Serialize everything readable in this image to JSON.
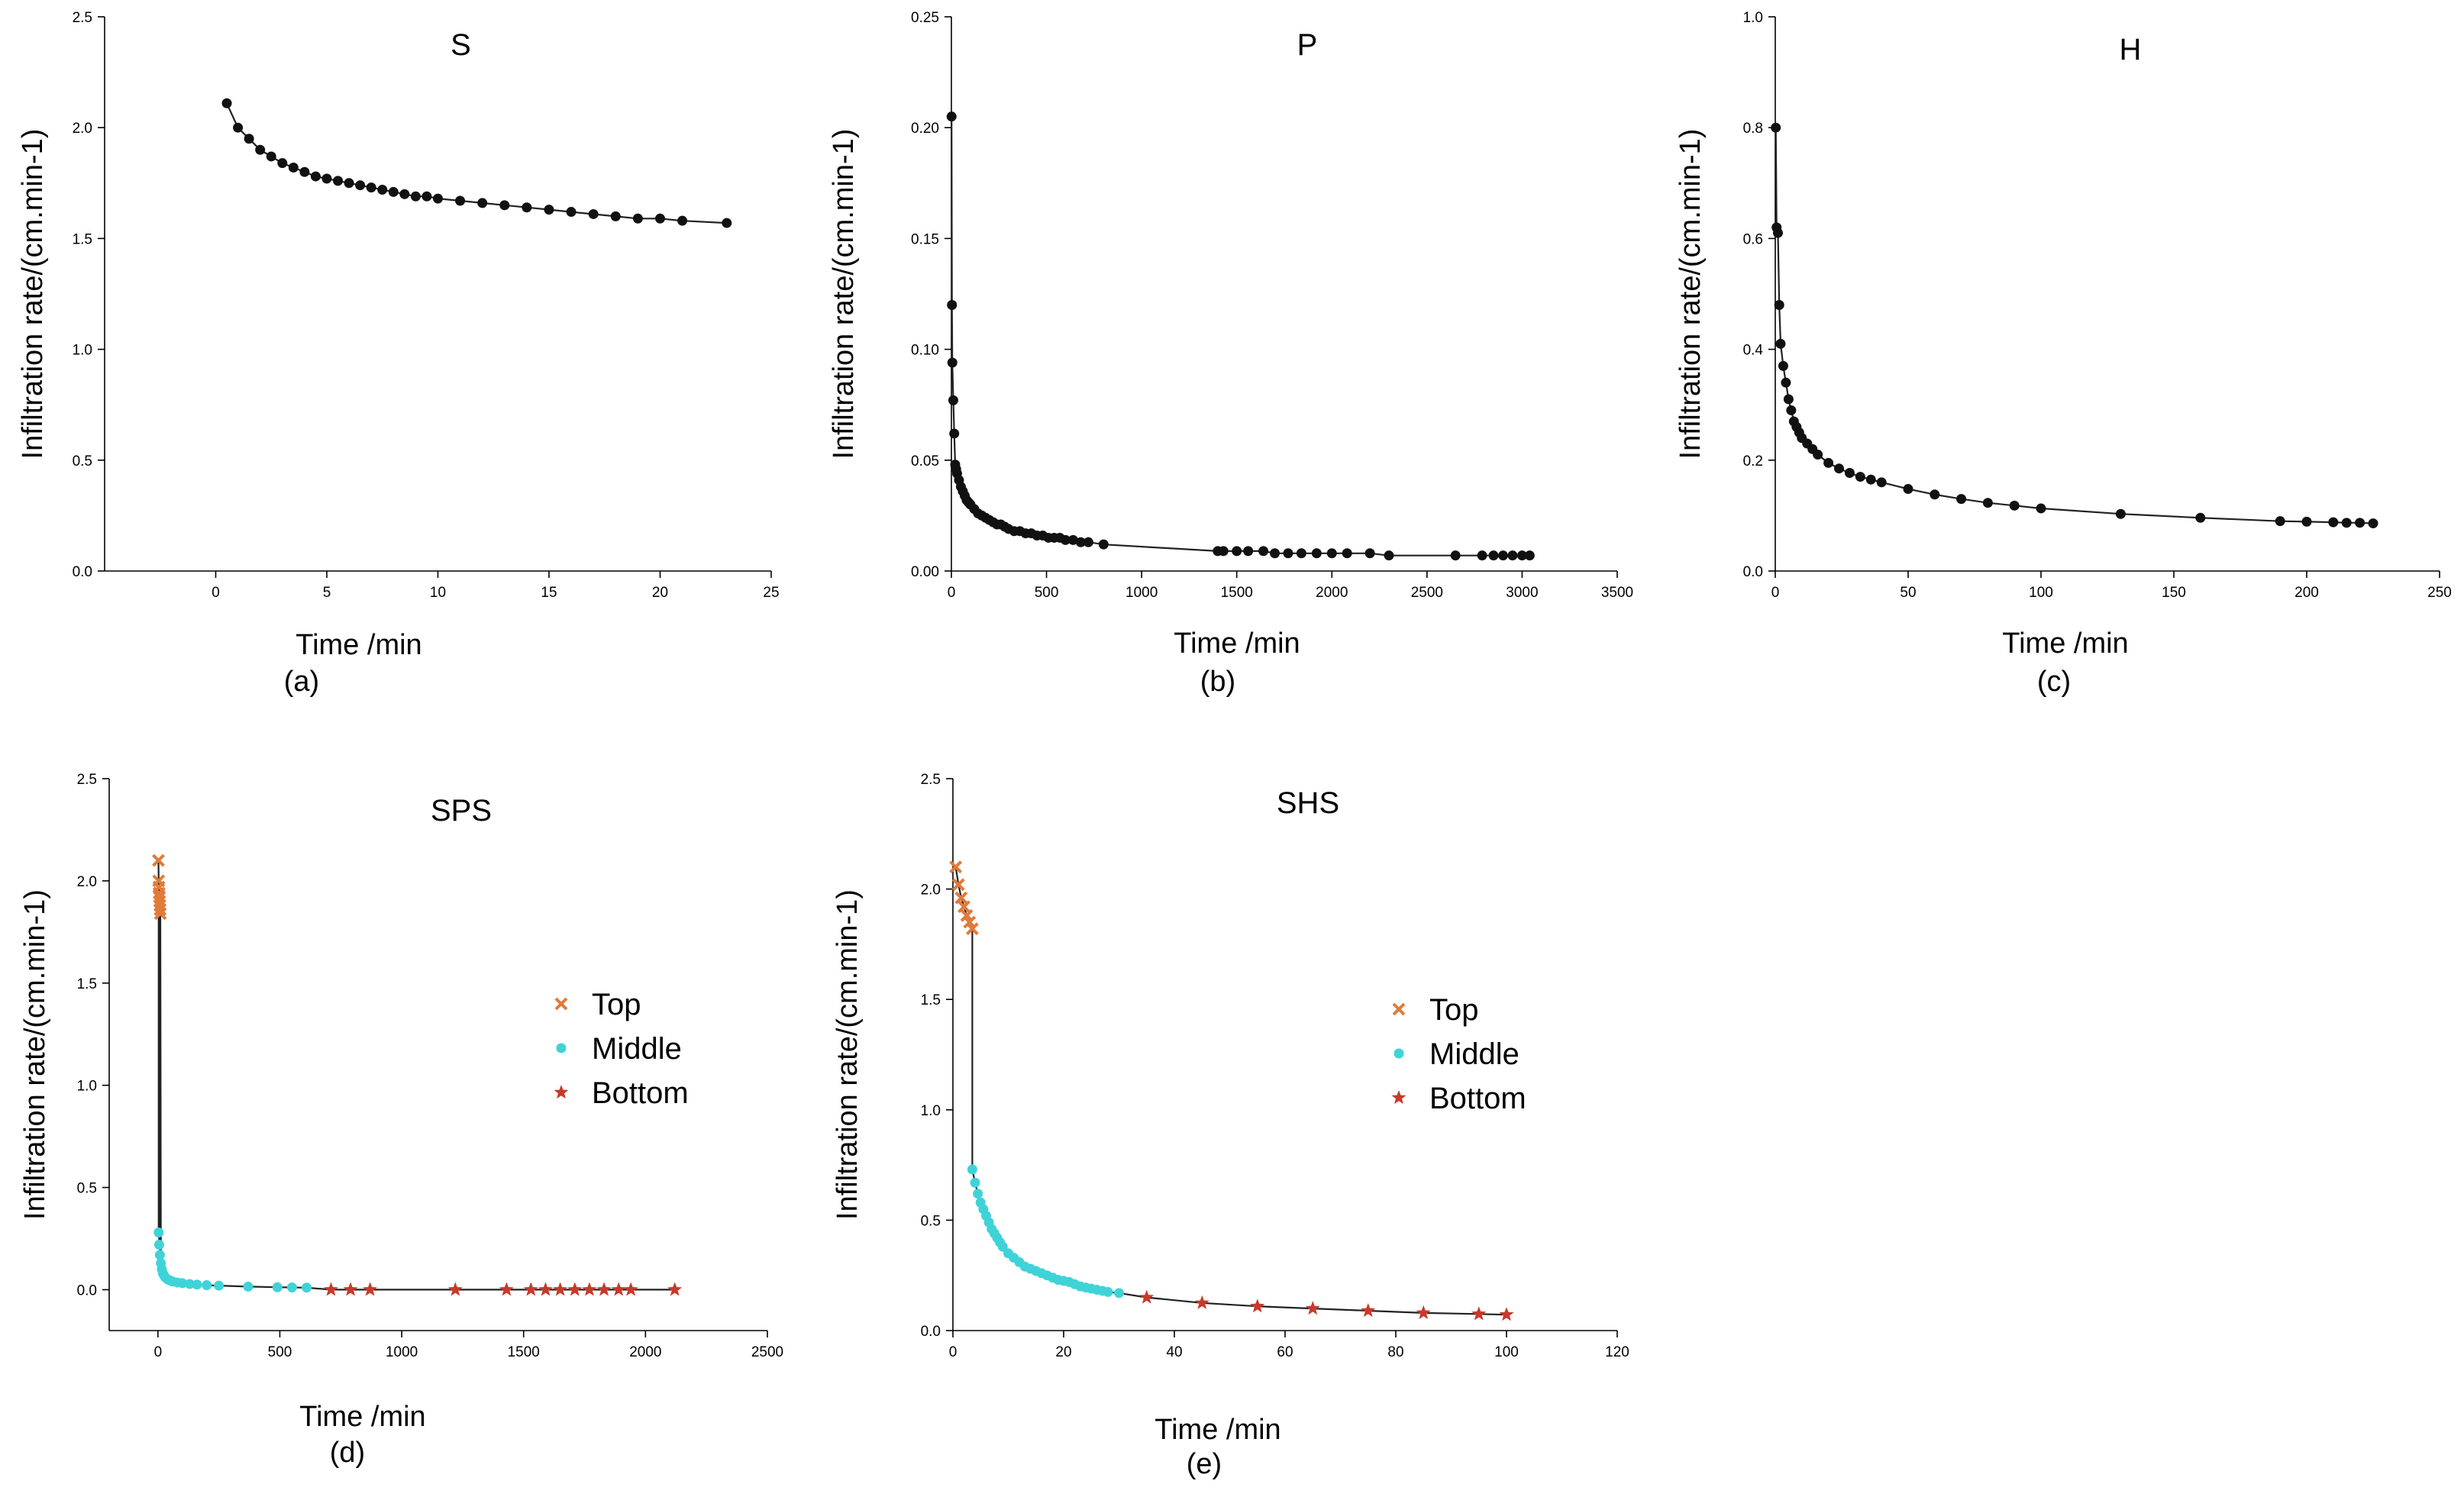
{
  "chart_data": [
    {
      "type": "scatter",
      "title": "S",
      "caption": "(a)",
      "xlabel": "Time /min",
      "ylabel": "Infiltration rate/(cm.min-1)",
      "xlim": [
        -5,
        25
      ],
      "ylim": [
        0,
        2.5
      ],
      "xticks": [
        0,
        5,
        10,
        15,
        20,
        25
      ],
      "yticks": [
        0.0,
        0.5,
        1.0,
        1.5,
        2.0,
        2.5
      ],
      "xtick_labels": [
        "0",
        "5",
        "10",
        "15",
        "20",
        "25"
      ],
      "ytick_labels": [
        "0.0",
        "0.5",
        "1.0",
        "1.5",
        "2.0",
        "2.5"
      ],
      "grid": false,
      "fit_line": true,
      "series": [
        {
          "marker": "circle",
          "color": "#111111",
          "x": [
            0.5,
            1,
            1.5,
            2,
            2.5,
            3,
            3.5,
            4,
            4.5,
            5,
            5.5,
            6,
            6.5,
            7,
            7.5,
            8,
            8.5,
            9,
            9.5,
            10,
            11,
            12,
            13,
            14,
            15,
            16,
            17,
            18,
            19,
            20,
            21,
            23
          ],
          "y": [
            2.11,
            2.0,
            1.95,
            1.9,
            1.87,
            1.84,
            1.82,
            1.8,
            1.78,
            1.77,
            1.76,
            1.75,
            1.74,
            1.73,
            1.72,
            1.71,
            1.7,
            1.69,
            1.69,
            1.68,
            1.67,
            1.66,
            1.65,
            1.64,
            1.63,
            1.62,
            1.61,
            1.6,
            1.59,
            1.59,
            1.58,
            1.57
          ]
        }
      ]
    },
    {
      "type": "scatter",
      "title": "P",
      "caption": "(b)",
      "xlabel": "Time /min",
      "ylabel": "Infiltration rate/(cm.min-1)",
      "xlim": [
        0,
        3500
      ],
      "ylim": [
        0,
        0.25
      ],
      "xticks": [
        0,
        500,
        1000,
        1500,
        2000,
        2500,
        3000,
        3500
      ],
      "yticks": [
        0.0,
        0.05,
        0.1,
        0.15,
        0.2,
        0.25
      ],
      "xtick_labels": [
        "0",
        "500",
        "1000",
        "1500",
        "2000",
        "2500",
        "3000",
        "3500"
      ],
      "ytick_labels": [
        "0.00",
        "0.05",
        "0.10",
        "0.15",
        "0.20",
        "0.25"
      ],
      "grid": false,
      "fit_line": true,
      "series": [
        {
          "marker": "circle",
          "color": "#111111",
          "x": [
            1,
            3,
            5,
            10,
            15,
            20,
            25,
            30,
            40,
            50,
            60,
            70,
            80,
            90,
            100,
            120,
            140,
            160,
            180,
            200,
            220,
            240,
            260,
            280,
            300,
            330,
            360,
            390,
            420,
            450,
            480,
            510,
            540,
            570,
            600,
            640,
            680,
            720,
            800,
            1400,
            1430,
            1500,
            1560,
            1640,
            1700,
            1770,
            1840,
            1920,
            2000,
            2080,
            2200,
            2300,
            2650,
            2790,
            2850,
            2900,
            2950,
            3000,
            3040
          ],
          "y": [
            0.205,
            0.12,
            0.094,
            0.077,
            0.062,
            0.048,
            0.046,
            0.044,
            0.041,
            0.038,
            0.036,
            0.034,
            0.032,
            0.031,
            0.03,
            0.028,
            0.026,
            0.025,
            0.024,
            0.023,
            0.022,
            0.021,
            0.021,
            0.02,
            0.019,
            0.018,
            0.018,
            0.017,
            0.017,
            0.016,
            0.016,
            0.015,
            0.015,
            0.015,
            0.014,
            0.014,
            0.013,
            0.013,
            0.012,
            0.009,
            0.009,
            0.009,
            0.009,
            0.009,
            0.008,
            0.008,
            0.008,
            0.008,
            0.008,
            0.008,
            0.008,
            0.007,
            0.007,
            0.007,
            0.007,
            0.007,
            0.007,
            0.007,
            0.007
          ]
        }
      ]
    },
    {
      "type": "scatter",
      "title": "H",
      "caption": "(c)",
      "xlabel": "Time /min",
      "ylabel": "Infiltration rate/(cm.min-1)",
      "xlim": [
        0,
        250
      ],
      "ylim": [
        0,
        1.0
      ],
      "xticks": [
        0,
        50,
        100,
        150,
        200,
        250
      ],
      "yticks": [
        0.0,
        0.2,
        0.4,
        0.6,
        0.8,
        1.0
      ],
      "xtick_labels": [
        "0",
        "50",
        "100",
        "150",
        "200",
        "250"
      ],
      "ytick_labels": [
        "0.0",
        "0.2",
        "0.4",
        "0.6",
        "0.8",
        "1.0"
      ],
      "grid": false,
      "fit_line": true,
      "series": [
        {
          "marker": "circle",
          "color": "#111111",
          "x": [
            0.2,
            0.5,
            1,
            1.5,
            2,
            3,
            4,
            5,
            6,
            7,
            8,
            9,
            10,
            12,
            14,
            16,
            20,
            24,
            28,
            32,
            36,
            40,
            50,
            60,
            70,
            80,
            90,
            100,
            130,
            160,
            190,
            200,
            210,
            215,
            220,
            225
          ],
          "y": [
            0.8,
            0.62,
            0.61,
            0.48,
            0.41,
            0.37,
            0.34,
            0.31,
            0.29,
            0.27,
            0.26,
            0.25,
            0.24,
            0.23,
            0.22,
            0.21,
            0.195,
            0.185,
            0.177,
            0.17,
            0.165,
            0.16,
            0.148,
            0.138,
            0.13,
            0.123,
            0.118,
            0.113,
            0.103,
            0.096,
            0.09,
            0.089,
            0.088,
            0.087,
            0.087,
            0.086
          ]
        }
      ]
    },
    {
      "type": "scatter",
      "title": "SPS",
      "caption": "(d)",
      "xlabel": "Time /min",
      "ylabel": "Infiltration rate/(cm.min-1)",
      "xlim": [
        -200,
        2500
      ],
      "ylim": [
        -0.2,
        2.5
      ],
      "xticks": [
        0,
        500,
        1000,
        1500,
        2000,
        2500
      ],
      "yticks": [
        0.0,
        0.5,
        1.0,
        1.5,
        2.0,
        2.5
      ],
      "xtick_labels": [
        "0",
        "500",
        "1000",
        "1500",
        "2000",
        "2500"
      ],
      "ytick_labels": [
        "0.0",
        "0.5",
        "1.0",
        "1.5",
        "2.0",
        "2.5"
      ],
      "grid": false,
      "fit_line": true,
      "legend": {
        "placement": "center-right"
      },
      "series": [
        {
          "name": "Top",
          "marker": "x",
          "color": "#e07b39",
          "x": [
            2,
            3,
            4,
            5,
            6,
            7,
            8,
            9,
            10
          ],
          "y": [
            2.1,
            2.0,
            1.97,
            1.94,
            1.92,
            1.9,
            1.88,
            1.86,
            1.84
          ]
        },
        {
          "name": "Middle",
          "marker": "circle",
          "color": "#3fd3d8",
          "x": [
            3,
            5,
            8,
            12,
            16,
            20,
            25,
            30,
            40,
            50,
            60,
            80,
            100,
            130,
            160,
            200,
            250,
            370,
            490,
            550,
            610
          ],
          "y": [
            0.28,
            0.22,
            0.17,
            0.13,
            0.1,
            0.08,
            0.07,
            0.06,
            0.05,
            0.045,
            0.04,
            0.035,
            0.032,
            0.028,
            0.025,
            0.022,
            0.02,
            0.015,
            0.012,
            0.011,
            0.01
          ]
        },
        {
          "name": "Bottom",
          "marker": "star",
          "color": "#c8392b",
          "x": [
            710,
            790,
            870,
            1220,
            1430,
            1530,
            1590,
            1650,
            1710,
            1770,
            1830,
            1890,
            1940,
            2120
          ],
          "y": [
            0.0,
            0.0,
            0.0,
            0.0,
            0.0,
            0.0,
            0.0,
            0.0,
            0.0,
            0.0,
            0.0,
            0.0,
            0.0,
            0.0
          ]
        }
      ]
    },
    {
      "type": "scatter",
      "title": "SHS",
      "caption": "(e)",
      "xlabel": "Time /min",
      "ylabel": "Infiltration rate/(cm.min-1)",
      "xlim": [
        0,
        120
      ],
      "ylim": [
        0,
        2.5
      ],
      "xticks": [
        0,
        20,
        40,
        60,
        80,
        100,
        120
      ],
      "yticks": [
        0.0,
        0.5,
        1.0,
        1.5,
        2.0,
        2.5
      ],
      "xtick_labels": [
        "0",
        "20",
        "40",
        "60",
        "80",
        "100",
        "120"
      ],
      "ytick_labels": [
        "0.0",
        "0.5",
        "1.0",
        "1.5",
        "2.0",
        "2.5"
      ],
      "grid": false,
      "fit_line": true,
      "legend": {
        "placement": "center-right"
      },
      "series": [
        {
          "name": "Top",
          "marker": "x",
          "color": "#e07b39",
          "x": [
            0.5,
            1,
            1.5,
            2,
            2.5,
            3,
            3.5
          ],
          "y": [
            2.1,
            2.02,
            1.96,
            1.92,
            1.88,
            1.85,
            1.82
          ]
        },
        {
          "name": "Middle",
          "marker": "circle",
          "color": "#3fd3d8",
          "x": [
            3.5,
            4,
            4.5,
            5,
            5.5,
            6,
            6.5,
            7,
            7.5,
            8,
            8.5,
            9,
            10,
            11,
            12,
            13,
            14,
            15,
            16,
            17,
            18,
            19,
            20,
            21,
            22,
            23,
            24,
            25,
            26,
            27,
            28,
            30
          ],
          "y": [
            0.73,
            0.67,
            0.62,
            0.58,
            0.55,
            0.52,
            0.49,
            0.46,
            0.44,
            0.42,
            0.4,
            0.38,
            0.35,
            0.33,
            0.31,
            0.29,
            0.28,
            0.27,
            0.26,
            0.25,
            0.24,
            0.23,
            0.225,
            0.22,
            0.21,
            0.2,
            0.195,
            0.19,
            0.185,
            0.18,
            0.175,
            0.17
          ]
        },
        {
          "name": "Bottom",
          "marker": "star",
          "color": "#c8392b",
          "x": [
            35,
            45,
            55,
            65,
            75,
            85,
            95,
            100
          ],
          "y": [
            0.15,
            0.125,
            0.11,
            0.1,
            0.09,
            0.08,
            0.075,
            0.072
          ]
        }
      ]
    }
  ]
}
